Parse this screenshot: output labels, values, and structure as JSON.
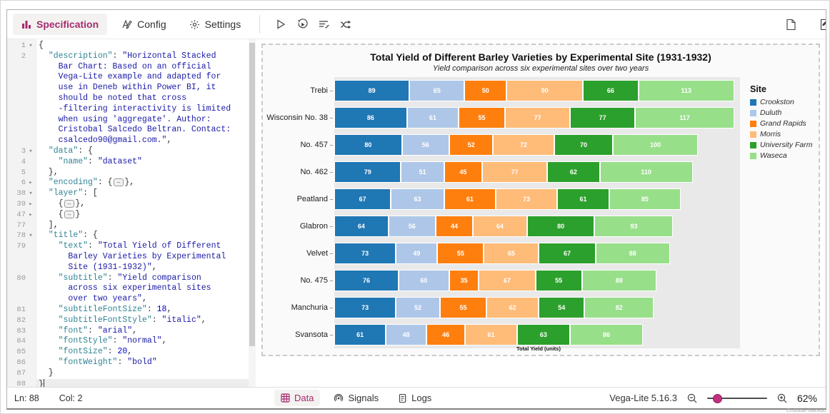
{
  "accent": "#a62c6e",
  "toolbar": {
    "tabs": [
      {
        "label": "Specification",
        "icon": "bar-chart-icon",
        "active": true
      },
      {
        "label": "Config",
        "icon": "pen-a-icon",
        "active": false
      },
      {
        "label": "Settings",
        "icon": "gear-icon",
        "active": false
      }
    ],
    "actions": [
      "apply",
      "auto-apply",
      "format-json",
      "remap-fields"
    ],
    "right_actions": [
      "new-specification",
      "edge-partial"
    ]
  },
  "editor": {
    "status": {
      "line": "Ln: 88",
      "col": "Col: 2"
    },
    "lines": [
      {
        "n": "1",
        "f": "o",
        "seg": [
          [
            "p",
            "{"
          ]
        ]
      },
      {
        "n": "2",
        "f": "",
        "seg": [
          [
            "p",
            "  "
          ],
          [
            "k",
            "\"description\""
          ],
          [
            "p",
            ": "
          ],
          [
            "s",
            "\"Horizontal Stacked"
          ]
        ]
      },
      {
        "n": "",
        "seg": [
          [
            "s",
            "    Bar Chart: Based on an official"
          ]
        ]
      },
      {
        "n": "",
        "seg": [
          [
            "s",
            "    Vega-Lite example and adapted for"
          ]
        ]
      },
      {
        "n": "",
        "seg": [
          [
            "s",
            "    use in Deneb within Power BI, it"
          ]
        ]
      },
      {
        "n": "",
        "seg": [
          [
            "s",
            "    should be noted that cross"
          ]
        ]
      },
      {
        "n": "",
        "seg": [
          [
            "s",
            "    -filtering interactivity is limited"
          ]
        ]
      },
      {
        "n": "",
        "seg": [
          [
            "s",
            "    when using 'aggregate'. Author:"
          ]
        ]
      },
      {
        "n": "",
        "seg": [
          [
            "s",
            "    Cristobal Salcedo Beltran. Contact:"
          ]
        ]
      },
      {
        "n": "",
        "seg": [
          [
            "s",
            "    csalcedo90@gmail.com.\""
          ],
          [
            "p",
            ","
          ]
        ]
      },
      {
        "n": "3",
        "f": "o",
        "seg": [
          [
            "p",
            "  "
          ],
          [
            "k",
            "\"data\""
          ],
          [
            "p",
            ": {"
          ]
        ]
      },
      {
        "n": "4",
        "seg": [
          [
            "p",
            "    "
          ],
          [
            "k",
            "\"name\""
          ],
          [
            "p",
            ": "
          ],
          [
            "s",
            "\"dataset\""
          ]
        ]
      },
      {
        "n": "5",
        "seg": [
          [
            "p",
            "  },"
          ]
        ]
      },
      {
        "n": "6",
        "f": "c",
        "seg": [
          [
            "p",
            "  "
          ],
          [
            "k",
            "\"encoding\""
          ],
          [
            "p",
            ": {"
          ],
          [
            "b",
            ""
          ],
          [
            "p",
            "},"
          ]
        ]
      },
      {
        "n": "38",
        "f": "o",
        "seg": [
          [
            "p",
            "  "
          ],
          [
            "k",
            "\"layer\""
          ],
          [
            "p",
            ": ["
          ]
        ]
      },
      {
        "n": "39",
        "f": "c",
        "seg": [
          [
            "p",
            "    {"
          ],
          [
            "b",
            ""
          ],
          [
            "p",
            "},"
          ]
        ]
      },
      {
        "n": "47",
        "f": "c",
        "seg": [
          [
            "p",
            "    {"
          ],
          [
            "b",
            ""
          ],
          [
            "p",
            "}"
          ]
        ]
      },
      {
        "n": "77",
        "seg": [
          [
            "p",
            "  ],"
          ]
        ]
      },
      {
        "n": "78",
        "f": "o",
        "seg": [
          [
            "p",
            "  "
          ],
          [
            "k",
            "\"title\""
          ],
          [
            "p",
            ": {"
          ]
        ]
      },
      {
        "n": "79",
        "seg": [
          [
            "p",
            "    "
          ],
          [
            "k",
            "\"text\""
          ],
          [
            "p",
            ": "
          ],
          [
            "s",
            "\"Total Yield of Different"
          ]
        ]
      },
      {
        "n": "",
        "seg": [
          [
            "s",
            "      Barley Varieties by Experimental"
          ]
        ]
      },
      {
        "n": "",
        "seg": [
          [
            "s",
            "      Site (1931-1932)\""
          ],
          [
            "p",
            ","
          ]
        ]
      },
      {
        "n": "80",
        "seg": [
          [
            "p",
            "    "
          ],
          [
            "k",
            "\"subtitle\""
          ],
          [
            "p",
            ": "
          ],
          [
            "s",
            "\"Yield comparison"
          ]
        ]
      },
      {
        "n": "",
        "seg": [
          [
            "s",
            "      across six experimental sites"
          ]
        ]
      },
      {
        "n": "",
        "seg": [
          [
            "s",
            "      over two years\""
          ],
          [
            "p",
            ","
          ]
        ]
      },
      {
        "n": "81",
        "seg": [
          [
            "p",
            "    "
          ],
          [
            "k",
            "\"subtitleFontSize\""
          ],
          [
            "p",
            ": "
          ],
          [
            "d",
            "18"
          ],
          [
            "p",
            ","
          ]
        ]
      },
      {
        "n": "82",
        "seg": [
          [
            "p",
            "    "
          ],
          [
            "k",
            "\"subtitleFontStyle\""
          ],
          [
            "p",
            ": "
          ],
          [
            "s",
            "\"italic\""
          ],
          [
            "p",
            ","
          ]
        ]
      },
      {
        "n": "83",
        "seg": [
          [
            "p",
            "    "
          ],
          [
            "k",
            "\"font\""
          ],
          [
            "p",
            ": "
          ],
          [
            "s",
            "\"arial\""
          ],
          [
            "p",
            ","
          ]
        ]
      },
      {
        "n": "84",
        "seg": [
          [
            "p",
            "    "
          ],
          [
            "k",
            "\"fontStyle\""
          ],
          [
            "p",
            ": "
          ],
          [
            "s",
            "\"normal\""
          ],
          [
            "p",
            ","
          ]
        ]
      },
      {
        "n": "85",
        "seg": [
          [
            "p",
            "    "
          ],
          [
            "k",
            "\"fontSize\""
          ],
          [
            "p",
            ": "
          ],
          [
            "d",
            "20"
          ],
          [
            "p",
            ","
          ]
        ]
      },
      {
        "n": "86",
        "seg": [
          [
            "p",
            "    "
          ],
          [
            "k",
            "\"fontWeight\""
          ],
          [
            "p",
            ": "
          ],
          [
            "s",
            "\"bold\""
          ]
        ]
      },
      {
        "n": "87",
        "seg": [
          [
            "p",
            "  }"
          ]
        ]
      },
      {
        "n": "88",
        "active": true,
        "seg": [
          [
            "p",
            "}"
          ]
        ]
      }
    ]
  },
  "chart_data": {
    "type": "bar",
    "orientation": "horizontal",
    "stacked": true,
    "title": "Total Yield of Different Barley Varieties by Experimental Site (1931-1932)",
    "subtitle": "Yield comparison across six experimental sites over two years",
    "xlabel": "Total Yield (units)",
    "legend_title": "Site",
    "legend_position": "right",
    "x_max": 480,
    "categories": [
      "Trebi",
      "Wisconsin No. 38",
      "No. 457",
      "No. 462",
      "Peatland",
      "Glabron",
      "Velvet",
      "No. 475",
      "Manchuria",
      "Svansota"
    ],
    "series": [
      {
        "name": "Crookston",
        "color": "#1f77b4",
        "values": [
          89,
          86,
          80,
          79,
          67,
          64,
          73,
          76,
          73,
          61
        ]
      },
      {
        "name": "Duluth",
        "color": "#aec7e8",
        "values": [
          65,
          61,
          56,
          51,
          63,
          56,
          49,
          60,
          52,
          48
        ]
      },
      {
        "name": "Grand Rapids",
        "color": "#ff7f0e",
        "values": [
          50,
          55,
          52,
          45,
          61,
          44,
          55,
          35,
          55,
          46
        ]
      },
      {
        "name": "Morris",
        "color": "#ffbb78",
        "values": [
          90,
          77,
          72,
          77,
          73,
          64,
          65,
          67,
          62,
          61
        ]
      },
      {
        "name": "University Farm",
        "color": "#2ca02c",
        "values": [
          66,
          77,
          70,
          62,
          61,
          80,
          67,
          55,
          54,
          63
        ]
      },
      {
        "name": "Waseca",
        "color": "#98df8a",
        "values": [
          113,
          117,
          100,
          110,
          85,
          93,
          88,
          88,
          82,
          86
        ]
      }
    ]
  },
  "footer": {
    "tabs": [
      {
        "label": "Data",
        "icon": "data-grid-icon",
        "active": true
      },
      {
        "label": "Signals",
        "icon": "signals-icon",
        "active": false
      },
      {
        "label": "Logs",
        "icon": "logs-icon",
        "active": false
      }
    ],
    "version": "Vega-Lite 5.16.3",
    "zoom_level": "62%"
  },
  "watermark": "Cristobal-Salcedo"
}
